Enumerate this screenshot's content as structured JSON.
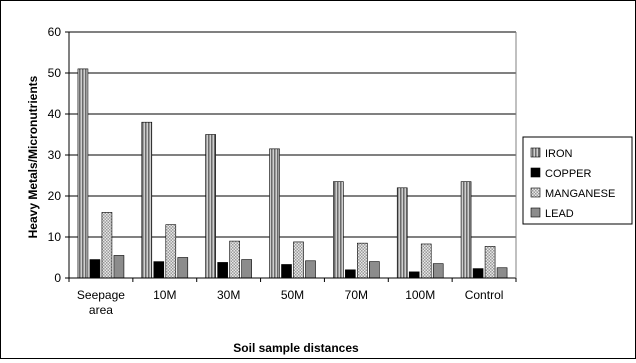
{
  "chart_data": {
    "type": "bar",
    "categories": [
      [
        "Seepage",
        "area"
      ],
      [
        "10M"
      ],
      [
        "30M"
      ],
      [
        "50M"
      ],
      [
        "70M"
      ],
      [
        "100M"
      ],
      [
        "Control"
      ]
    ],
    "series": [
      {
        "name": "IRON",
        "values": [
          51.0,
          38.0,
          35.0,
          31.5,
          23.5,
          22.0,
          23.5
        ],
        "color": "#9a9a9a",
        "pattern": "vstripe"
      },
      {
        "name": "COPPER",
        "values": [
          4.5,
          4.0,
          3.8,
          3.3,
          2.0,
          1.5,
          2.3
        ],
        "color": "#000000",
        "pattern": "solid"
      },
      {
        "name": "MANGANESE",
        "values": [
          16.0,
          13.0,
          9.0,
          8.8,
          8.5,
          8.3,
          7.7
        ],
        "color": "#c8c8c8",
        "pattern": "checker"
      },
      {
        "name": "LEAD",
        "values": [
          5.5,
          5.0,
          4.5,
          4.2,
          4.0,
          3.5,
          2.5
        ],
        "color": "#8c8c8c",
        "pattern": "solid"
      }
    ],
    "xlabel": "Soil sample distances",
    "ylabel": "Heavy Metals/Micronutrients",
    "ylim": [
      0,
      60
    ],
    "yticks": [
      0,
      10,
      20,
      30,
      40,
      50,
      60
    ],
    "grid": true,
    "legend_position": "right"
  }
}
